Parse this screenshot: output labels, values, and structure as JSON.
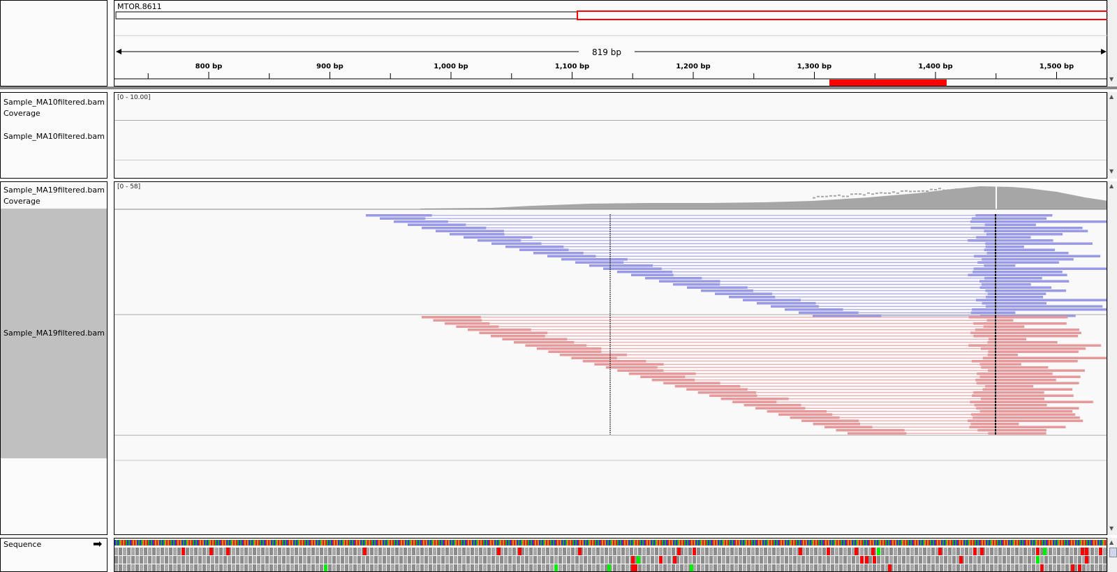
{
  "header": {
    "gene_name": "MTOR.8611",
    "span_label": "819 bp",
    "ruler_ticks": [
      "800 bp",
      "900 bp",
      "1,000 bp",
      "1,100 bp",
      "1,200 bp",
      "1,300 bp",
      "1,400 bp",
      "1,500 bp"
    ]
  },
  "tracks": {
    "ma10_coverage": {
      "name": "Sample_MA10filtered.bam Coverage",
      "range": "[0 - 10.00]"
    },
    "ma10_reads": {
      "name": "Sample_MA10filtered.bam"
    },
    "ma19_coverage": {
      "name": "Sample_MA19filtered.bam Coverage",
      "range": "[0 - 58]"
    },
    "ma19_reads": {
      "name": "Sample_MA19filtered.bam"
    },
    "sequence": {
      "name": "Sequence"
    }
  },
  "colors": {
    "forward_read": "#9999e6",
    "reverse_read": "#e6999a",
    "coverage": "#a6a6a6",
    "feature": "#ff0000",
    "stop_codon": "#ff0000",
    "start_codon": "#00ee00"
  },
  "icons": {
    "strand_arrow": "right-arrow-icon",
    "scroll_up": "up-arrow-icon",
    "scroll_down": "down-arrow-icon"
  }
}
